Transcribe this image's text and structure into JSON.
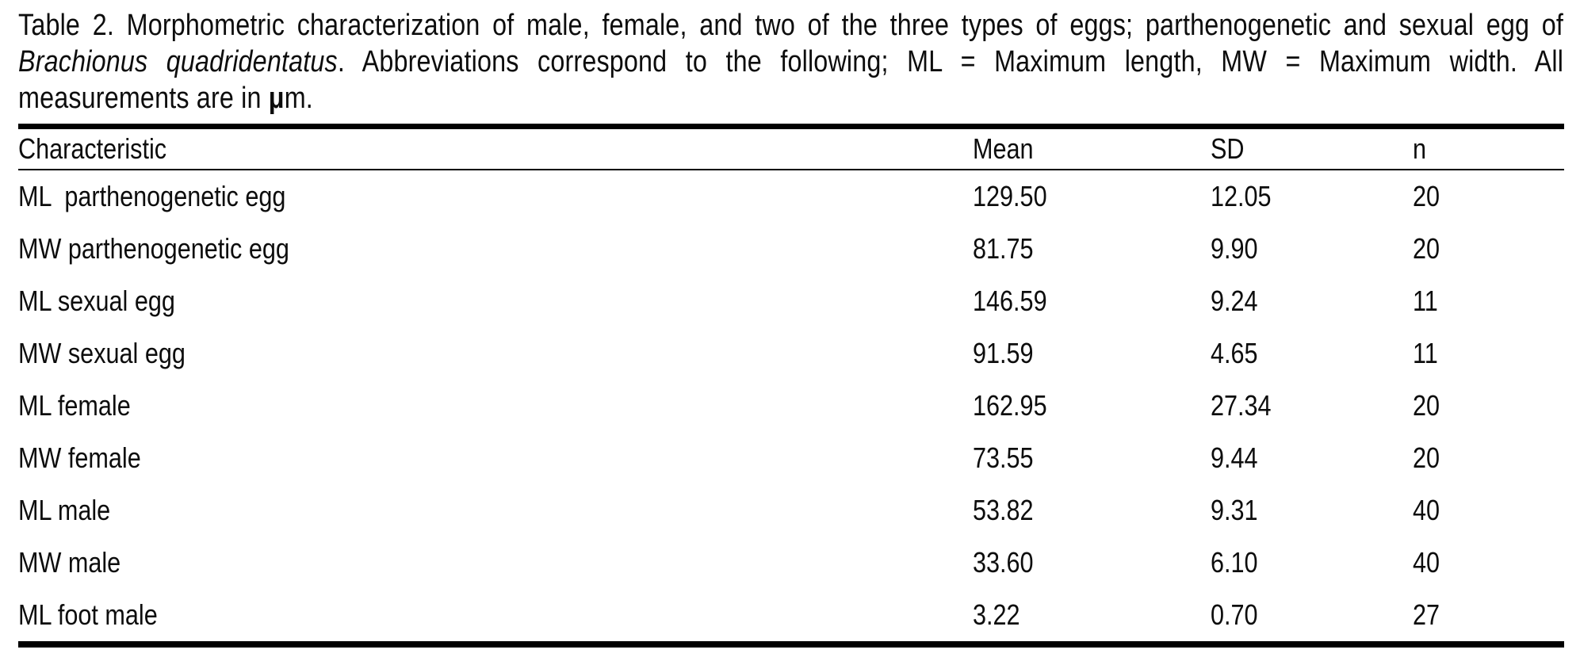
{
  "caption": {
    "line1": "Table 2. Morphometric characterization of male, female, and two of the three types of eggs; parthenogenetic and sexual egg of",
    "line2_italic": "Brachionus quadridentatus",
    "line2_rest": ". Abbreviations correspond to the following; ML = Maximum length, MW = Maximum width. All",
    "line3_pre": "measurements are in ",
    "line3_mu": "μ",
    "line3_post": "m."
  },
  "table": {
    "columns": [
      "Characteristic",
      "Mean",
      "SD",
      "n"
    ],
    "rows": [
      {
        "characteristic": "ML  parthenogenetic egg",
        "mean": "129.50",
        "sd": "12.05",
        "n": "20"
      },
      {
        "characteristic": "MW parthenogenetic egg",
        "mean": "81.75",
        "sd": "9.90",
        "n": "20"
      },
      {
        "characteristic": "ML sexual egg",
        "mean": "146.59",
        "sd": "9.24",
        "n": "11"
      },
      {
        "characteristic": "MW sexual egg",
        "mean": "91.59",
        "sd": "4.65",
        "n": "11"
      },
      {
        "characteristic": "ML female",
        "mean": "162.95",
        "sd": "27.34",
        "n": "20"
      },
      {
        "characteristic": "MW female",
        "mean": "73.55",
        "sd": "9.44",
        "n": "20"
      },
      {
        "characteristic": "ML male",
        "mean": "53.82",
        "sd": "9.31",
        "n": "40"
      },
      {
        "characteristic": "MW male",
        "mean": "33.60",
        "sd": "6.10",
        "n": "40"
      },
      {
        "characteristic": "ML foot male",
        "mean": "3.22",
        "sd": "0.70",
        "n": "27"
      }
    ]
  },
  "colors": {
    "text": "#0d0d0d",
    "background": "#ffffff",
    "rule": "#000000"
  }
}
